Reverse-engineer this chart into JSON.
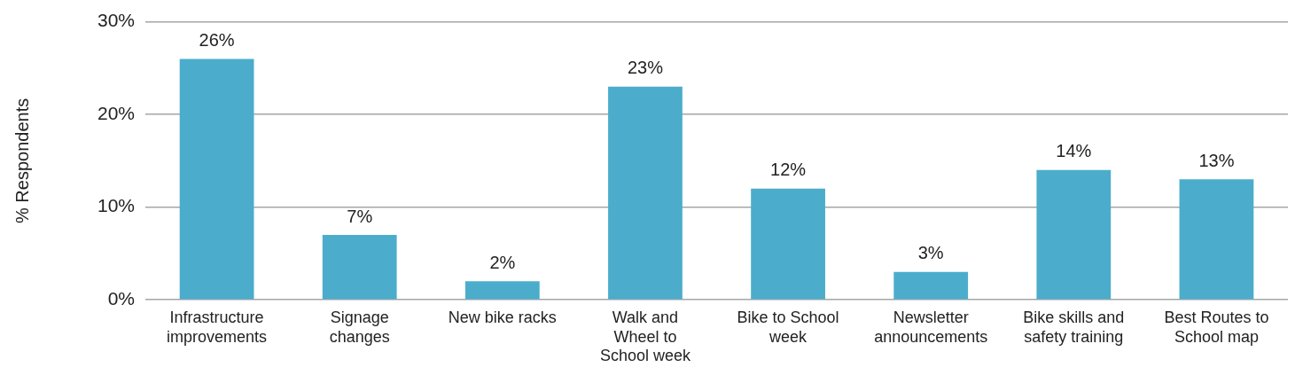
{
  "chart_data": {
    "type": "bar",
    "ylabel": "% Respondents",
    "categories": [
      "Infrastructure improvements",
      "Signage changes",
      "New bike racks",
      "Walk and Wheel to School week",
      "Bike to School week",
      "Newsletter announcements",
      "Bike skills and safety training",
      "Best Routes to School map"
    ],
    "values": [
      26,
      7,
      2,
      23,
      12,
      3,
      14,
      13
    ],
    "value_labels": [
      "26%",
      "7%",
      "2%",
      "23%",
      "12%",
      "3%",
      "14%",
      "13%"
    ],
    "color": "#4badcb",
    "ylim": [
      0,
      30
    ],
    "yticks": [
      {
        "value": 0,
        "label": "0%"
      },
      {
        "value": 10,
        "label": "10%"
      },
      {
        "value": 20,
        "label": "20%"
      },
      {
        "value": 30,
        "label": "30%"
      }
    ],
    "grid": "y",
    "legend": false
  }
}
